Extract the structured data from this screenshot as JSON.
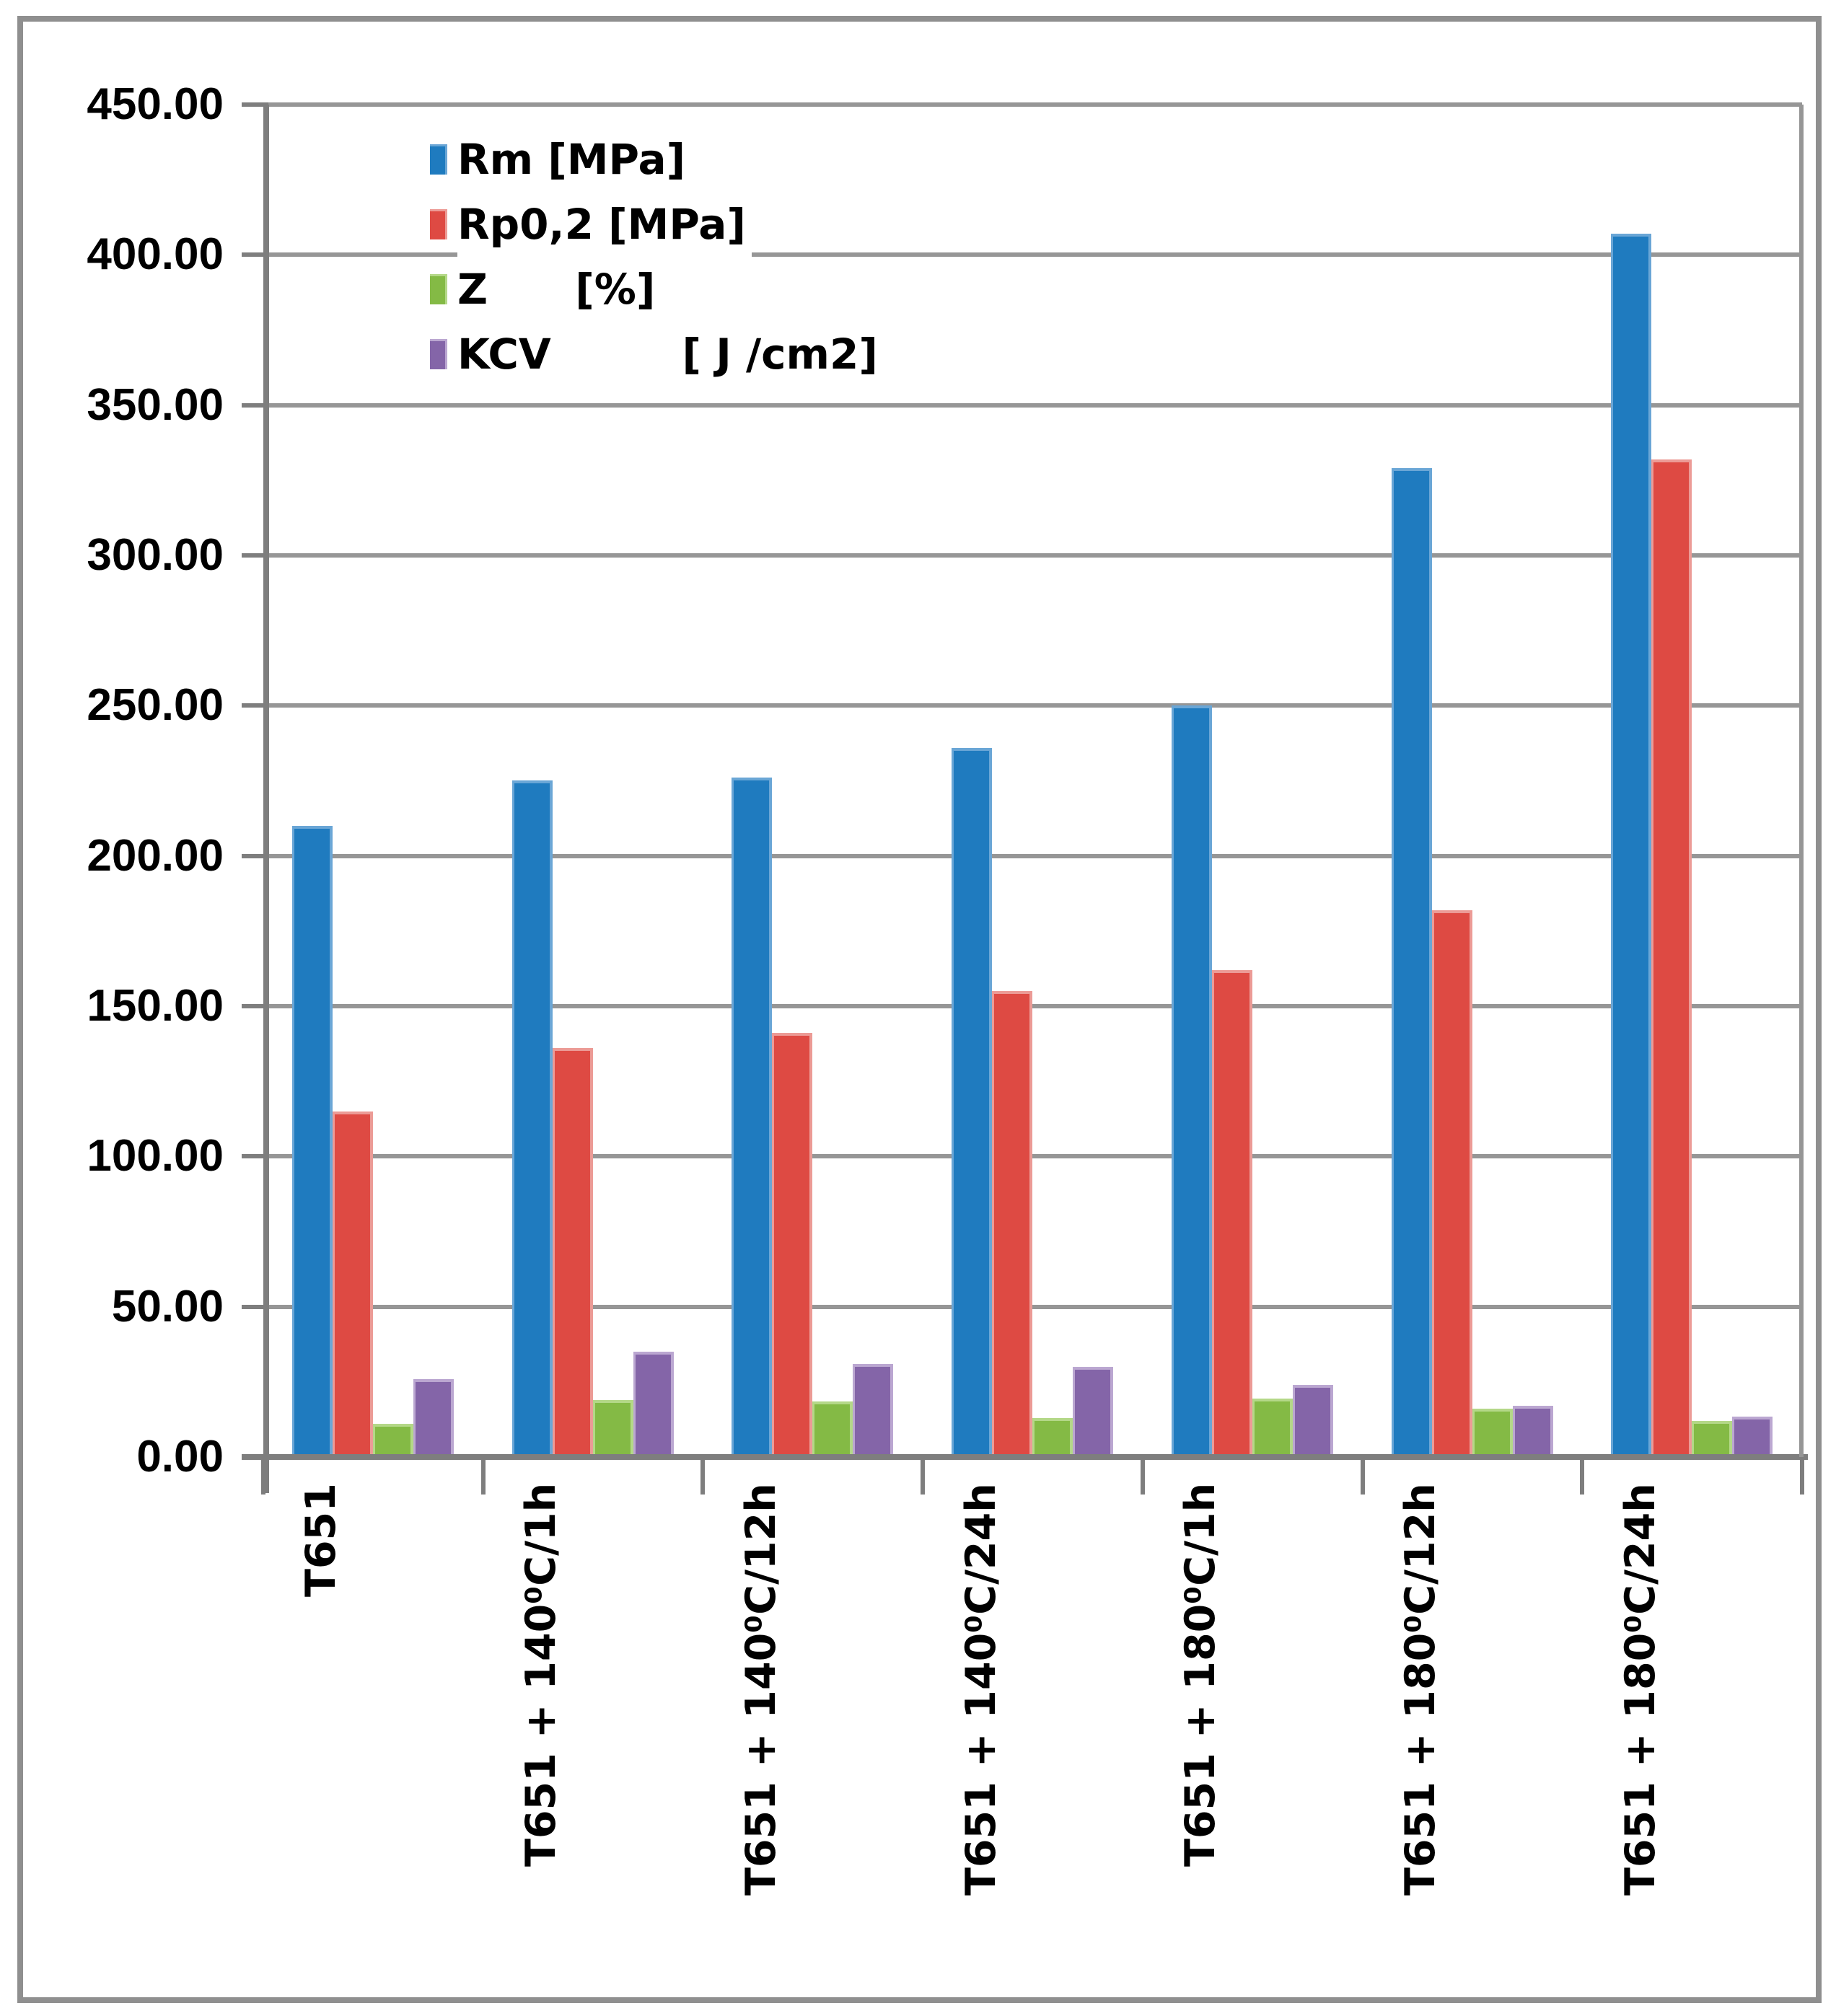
{
  "chart_data": {
    "type": "bar",
    "title": "",
    "categories": [
      "T651",
      "T651 + 140⁰C/1h",
      "T651 + 140⁰C/12h",
      "T651 + 140⁰C/24h",
      "T651 + 180⁰C/1h",
      "T651 + 180⁰C/12h",
      "T651 + 180⁰C/24h"
    ],
    "series": [
      {
        "name": "Rm [MPa]",
        "color": "#1f7bbf",
        "edge": "#6aa6d6",
        "values": [
          210,
          225,
          226,
          236,
          250,
          329,
          407
        ]
      },
      {
        "name": "Rp0,2 [MPa]",
        "color": "#de4a43",
        "edge": "#ec9b96",
        "values": [
          115,
          136,
          141,
          155,
          162,
          182,
          332
        ]
      },
      {
        "name": "Z      [%]",
        "color": "#84ba45",
        "edge": "#b4d888",
        "values": [
          11,
          19,
          18.5,
          13,
          19.5,
          16,
          12
        ]
      },
      {
        "name": "KCV         [ J /cm2]",
        "color": "#8465a8",
        "edge": "#bba7d1",
        "values": [
          26,
          35,
          31,
          30,
          24,
          17,
          13.5
        ]
      }
    ],
    "ylim": [
      0,
      450
    ],
    "ytick_step": 50,
    "ytick_labels": [
      "0.00",
      "50.00",
      "100.00",
      "150.00",
      "200.00",
      "250.00",
      "300.00",
      "350.00",
      "400.00",
      "450.00"
    ],
    "grid": "horizontal",
    "legend_position": "top-left-inside",
    "xlabel": "",
    "ylabel": ""
  },
  "style_colors": {
    "gridline": "#969696",
    "axis": "#7e7e7e",
    "text": "#000000",
    "frame_border": "#8f8f8f",
    "background": "#ffffff"
  }
}
